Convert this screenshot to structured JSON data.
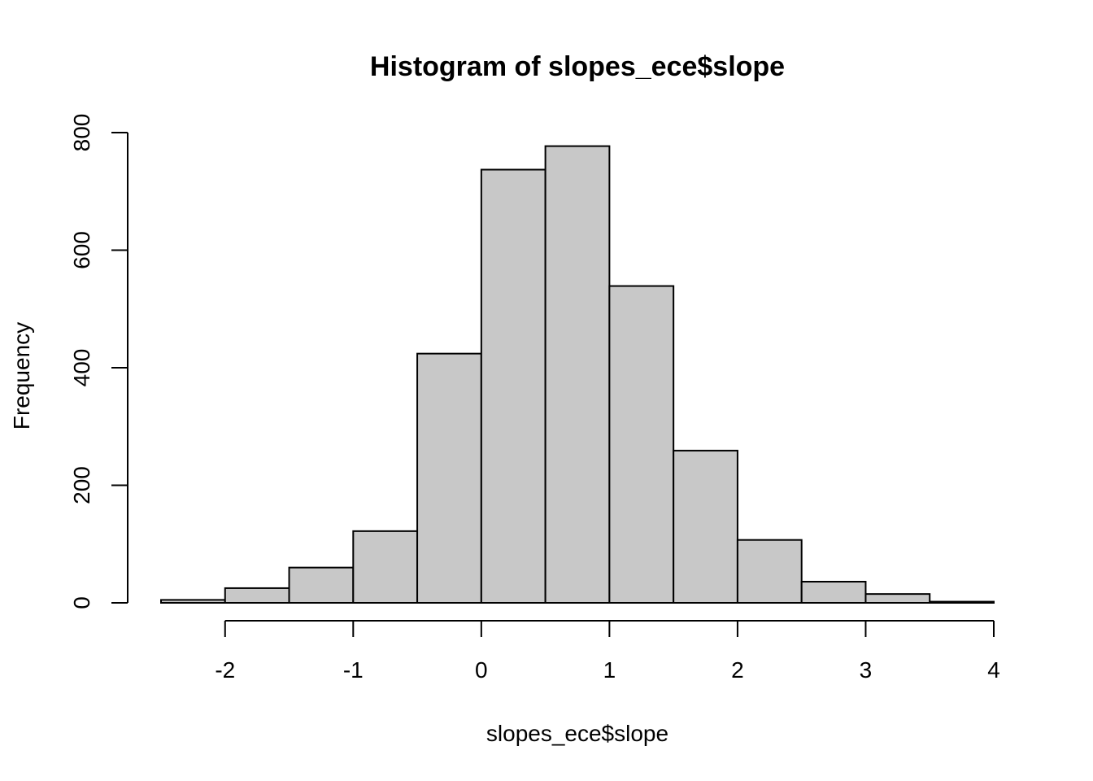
{
  "chart_data": {
    "type": "bar",
    "title": "Histogram of slopes_ece$slope",
    "xlabel": "slopes_ece$slope",
    "ylabel": "Frequency",
    "bins": [
      {
        "start": -2.5,
        "end": -2.0,
        "count": 5
      },
      {
        "start": -2.0,
        "end": -1.5,
        "count": 25
      },
      {
        "start": -1.5,
        "end": -1.0,
        "count": 60
      },
      {
        "start": -1.0,
        "end": -0.5,
        "count": 122
      },
      {
        "start": -0.5,
        "end": 0.0,
        "count": 424
      },
      {
        "start": 0.0,
        "end": 0.5,
        "count": 737
      },
      {
        "start": 0.5,
        "end": 1.0,
        "count": 777
      },
      {
        "start": 1.0,
        "end": 1.5,
        "count": 539
      },
      {
        "start": 1.5,
        "end": 2.0,
        "count": 259
      },
      {
        "start": 2.0,
        "end": 2.5,
        "count": 107
      },
      {
        "start": 2.5,
        "end": 3.0,
        "count": 36
      },
      {
        "start": 3.0,
        "end": 3.5,
        "count": 15
      },
      {
        "start": 3.5,
        "end": 4.0,
        "count": 2
      }
    ],
    "xlim": [
      -2.5,
      4
    ],
    "ylim": [
      0,
      800
    ],
    "xticks": [
      -2,
      -1,
      0,
      1,
      2,
      3,
      4
    ],
    "yticks": [
      0,
      200,
      400,
      600,
      800
    ],
    "bar_color": "#c8c8c8",
    "edge_color": "#000000",
    "grid": false
  }
}
